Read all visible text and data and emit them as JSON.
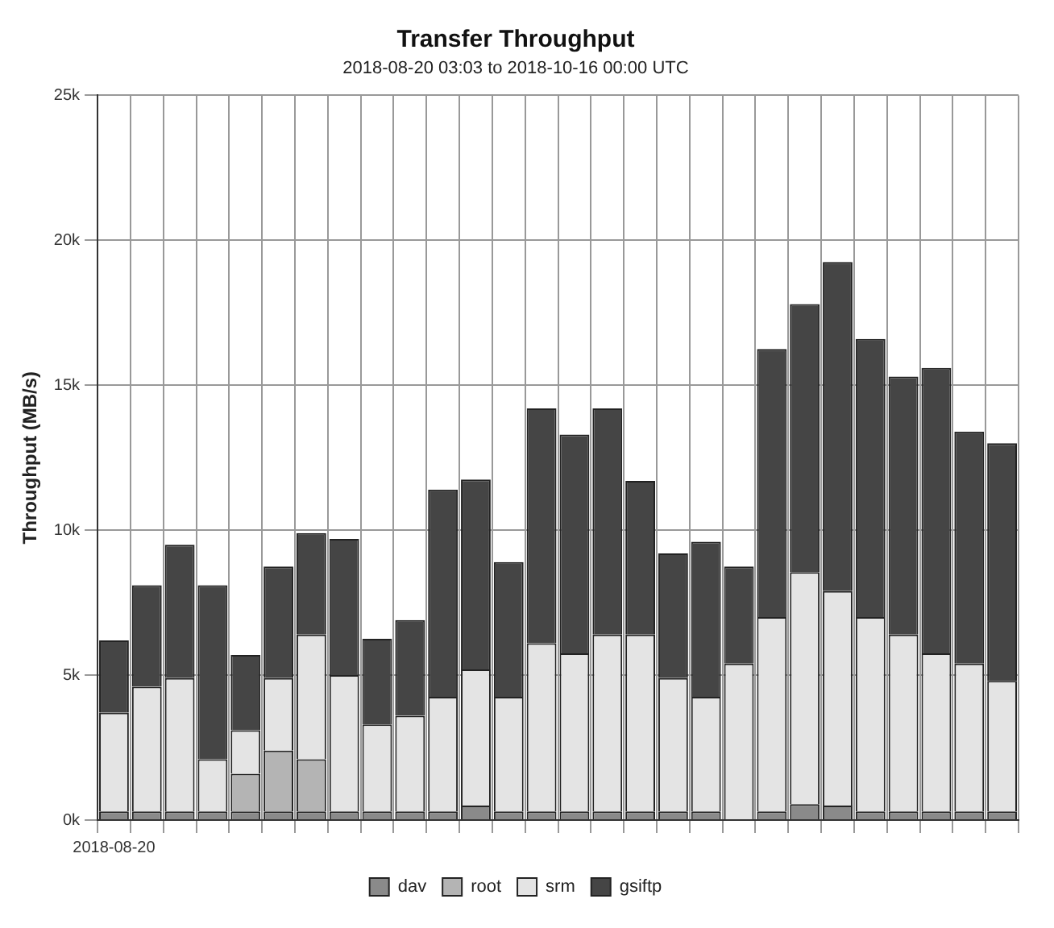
{
  "chart_data": {
    "type": "bar",
    "title": "Transfer Throughput",
    "subtitle": "2018-08-20 03:03 to 2018-10-16 00:00 UTC",
    "ylabel": "Throughput (MB/s)",
    "categories": [
      "2018-08-20",
      null,
      null,
      null,
      null,
      null,
      null,
      null,
      null,
      null,
      null,
      null,
      null,
      null,
      null,
      null,
      null,
      null,
      null,
      null,
      null,
      null,
      null,
      null,
      null,
      null,
      null,
      null
    ],
    "stacked": true,
    "series": [
      {
        "name": "dav",
        "color": "#8a8a8a",
        "values": [
          0.3,
          0.3,
          0.3,
          0.3,
          0.3,
          0.3,
          0.3,
          0.3,
          0.3,
          0.3,
          0.3,
          0.5,
          0.3,
          0.3,
          0.3,
          0.3,
          0.3,
          0.3,
          0.3,
          0,
          0.3,
          0.55,
          0.5,
          0.3,
          0.3,
          0.3,
          0.3,
          0.3
        ]
      },
      {
        "name": "root",
        "color": "#b4b4b4",
        "values": [
          0,
          0,
          0,
          0,
          1.3,
          2.1,
          1.8,
          0,
          0,
          0,
          0,
          0,
          0,
          0,
          0,
          0,
          0,
          0,
          0,
          0,
          0,
          0,
          0,
          0,
          0,
          0,
          0,
          0
        ]
      },
      {
        "name": "srm",
        "color": "#e4e4e4",
        "values": [
          3.4,
          4.3,
          4.6,
          1.8,
          1.5,
          2.5,
          4.3,
          4.7,
          3.0,
          3.3,
          3.95,
          4.7,
          3.95,
          5.8,
          5.45,
          6.1,
          6.1,
          4.6,
          3.95,
          5.4,
          6.7,
          8.0,
          7.4,
          6.7,
          6.1,
          5.45,
          5.1,
          4.5
        ]
      },
      {
        "name": "gsiftp",
        "color": "#454545",
        "values": [
          2.5,
          3.5,
          4.6,
          6.0,
          2.6,
          3.85,
          3.5,
          4.7,
          2.95,
          3.3,
          7.15,
          6.55,
          4.65,
          8.1,
          7.55,
          7.8,
          5.3,
          4.3,
          5.35,
          3.35,
          9.25,
          9.25,
          11.35,
          9.6,
          8.9,
          9.85,
          8.0,
          8.2
        ]
      }
    ],
    "ylim": [
      0,
      25
    ],
    "yticks": [
      {
        "value": 0,
        "label": "0k"
      },
      {
        "value": 5,
        "label": "5k"
      },
      {
        "value": 10,
        "label": "10k"
      },
      {
        "value": 15,
        "label": "15k"
      },
      {
        "value": 20,
        "label": "20k"
      },
      {
        "value": 25,
        "label": "25k"
      }
    ],
    "grid": true,
    "legend": "bottom"
  }
}
